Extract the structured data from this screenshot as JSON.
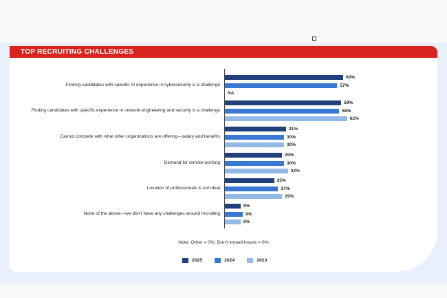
{
  "title": "TOP RECRUITING CHALLENGES",
  "note": "Note: Other = 0%; Don’t know/Unsure = 0%",
  "colors": {
    "2025": "#1f3f7d",
    "2024": "#3a79d3",
    "2023": "#93b9e6",
    "banner": "#d8231f"
  },
  "chart_data": {
    "type": "bar",
    "orientation": "horizontal",
    "title": "TOP RECRUITING CHALLENGES",
    "unit": "%",
    "xlim": [
      0,
      80
    ],
    "grid": false,
    "legend_position": "bottom",
    "categories": [
      "Finding candidates with specific AI experience in cybersecurity is a challenge",
      "Finding candidates with specific experience in network engineering and security is a challenge",
      "Cannot compete with what other organizations are offering—salary and benefits",
      "Demand for remote working",
      "Location of professionals is not ideal",
      "None of the above—we don’t have any challenges around recruiting"
    ],
    "series": [
      {
        "name": "2025",
        "values": [
          60,
          59,
          31,
          29,
          25,
          8
        ]
      },
      {
        "name": "2024",
        "values": [
          57,
          58,
          30,
          30,
          27,
          9
        ]
      },
      {
        "name": "2023",
        "values": [
          null,
          62,
          30,
          32,
          29,
          8
        ]
      }
    ],
    "missing_label": "NA"
  }
}
